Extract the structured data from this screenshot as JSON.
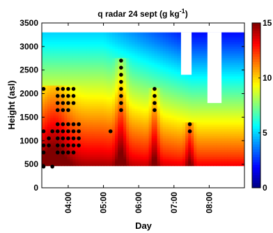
{
  "chart_data": {
    "type": "heatmap",
    "title": "q radar   24 sept    (g kg",
    "title_superscript": "-1",
    "title_suffix": ")",
    "xlabel": "Day",
    "ylabel": "Height (asl)",
    "x_range_hours": [
      3.25,
      9.0
    ],
    "y_range": [
      0,
      3500
    ],
    "x_ticks": [
      {
        "hour": 4,
        "label": "04:00"
      },
      {
        "hour": 5,
        "label": "05:00"
      },
      {
        "hour": 6,
        "label": "06:00"
      },
      {
        "hour": 7,
        "label": "07:00"
      },
      {
        "hour": 8,
        "label": "08:00"
      }
    ],
    "y_ticks": [
      {
        "value": 0,
        "label": "0"
      },
      {
        "value": 500,
        "label": "500"
      },
      {
        "value": 1000,
        "label": "1000"
      },
      {
        "value": 1500,
        "label": "1500"
      },
      {
        "value": 2000,
        "label": "2000"
      },
      {
        "value": 2500,
        "label": "2500"
      },
      {
        "value": 3000,
        "label": "3000"
      },
      {
        "value": 3500,
        "label": "3500"
      }
    ],
    "colorbar": {
      "range": [
        0,
        15
      ],
      "ticks": [
        {
          "value": 0,
          "label": "0"
        },
        {
          "value": 5,
          "label": "5"
        },
        {
          "value": 10,
          "label": "10"
        },
        {
          "value": 15,
          "label": "15"
        }
      ],
      "colormap": "jet"
    },
    "field_extent": {
      "x": [
        3.25,
        9.0
      ],
      "y": [
        470,
        3300
      ]
    },
    "missing_regions": [
      {
        "x": [
          7.2,
          7.5
        ],
        "y": [
          2400,
          3300
        ]
      },
      {
        "x": [
          7.95,
          8.35
        ],
        "y": [
          1800,
          3300
        ]
      }
    ],
    "q_profile": [
      {
        "height": 470,
        "q": 14.5
      },
      {
        "height": 700,
        "q": 13.5
      },
      {
        "height": 1000,
        "q": 12.5
      },
      {
        "height": 1300,
        "q": 11.5
      },
      {
        "height": 1600,
        "q": 10.5
      },
      {
        "height": 1900,
        "q": 9.5
      },
      {
        "height": 2200,
        "q": 8.5
      },
      {
        "height": 2500,
        "q": 7.5
      },
      {
        "height": 2800,
        "q": 6.5
      },
      {
        "height": 3100,
        "q": 5.5
      },
      {
        "height": 3300,
        "q": 5.0
      }
    ],
    "moist_plumes": [
      {
        "x": 5.5,
        "top": 2750,
        "width": 0.16
      },
      {
        "x": 6.45,
        "top": 2150,
        "width": 0.12
      },
      {
        "x": 7.45,
        "top": 1400,
        "width": 0.12
      },
      {
        "x": 3.6,
        "top": 2200,
        "width": 0.45
      }
    ],
    "drying_trend": {
      "start_hour": 5.0,
      "amount": 3.0
    },
    "series": [
      {
        "type": "scatter",
        "points": [
          {
            "x": 3.3,
            "y": 2100
          },
          {
            "x": 3.3,
            "y": 1200
          },
          {
            "x": 3.3,
            "y": 900
          },
          {
            "x": 3.3,
            "y": 750
          },
          {
            "x": 3.3,
            "y": 450
          },
          {
            "x": 3.45,
            "y": 1050
          },
          {
            "x": 3.45,
            "y": 900
          },
          {
            "x": 3.55,
            "y": 1200
          },
          {
            "x": 3.55,
            "y": 450
          },
          {
            "x": 3.7,
            "y": 2100
          },
          {
            "x": 3.7,
            "y": 1950
          },
          {
            "x": 3.7,
            "y": 1800
          },
          {
            "x": 3.7,
            "y": 1650
          },
          {
            "x": 3.7,
            "y": 1350
          },
          {
            "x": 3.7,
            "y": 1200
          },
          {
            "x": 3.7,
            "y": 1050
          },
          {
            "x": 3.7,
            "y": 900
          },
          {
            "x": 3.7,
            "y": 750
          },
          {
            "x": 3.85,
            "y": 2100
          },
          {
            "x": 3.85,
            "y": 1950
          },
          {
            "x": 3.85,
            "y": 1800
          },
          {
            "x": 3.85,
            "y": 1650
          },
          {
            "x": 3.85,
            "y": 1350
          },
          {
            "x": 3.85,
            "y": 1200
          },
          {
            "x": 3.85,
            "y": 1050
          },
          {
            "x": 3.85,
            "y": 900
          },
          {
            "x": 3.85,
            "y": 750
          },
          {
            "x": 4.0,
            "y": 2100
          },
          {
            "x": 4.0,
            "y": 1950
          },
          {
            "x": 4.0,
            "y": 1800
          },
          {
            "x": 4.0,
            "y": 1650
          },
          {
            "x": 4.0,
            "y": 1350
          },
          {
            "x": 4.0,
            "y": 1200
          },
          {
            "x": 4.0,
            "y": 1050
          },
          {
            "x": 4.0,
            "y": 900
          },
          {
            "x": 4.0,
            "y": 750
          },
          {
            "x": 4.15,
            "y": 2100
          },
          {
            "x": 4.15,
            "y": 1950
          },
          {
            "x": 4.15,
            "y": 1800
          },
          {
            "x": 4.15,
            "y": 1350
          },
          {
            "x": 4.15,
            "y": 1200
          },
          {
            "x": 4.15,
            "y": 1050
          },
          {
            "x": 4.15,
            "y": 900
          },
          {
            "x": 4.15,
            "y": 750
          },
          {
            "x": 4.3,
            "y": 1350
          },
          {
            "x": 4.3,
            "y": 1200
          },
          {
            "x": 4.3,
            "y": 1050
          },
          {
            "x": 4.3,
            "y": 900
          },
          {
            "x": 5.2,
            "y": 1200
          },
          {
            "x": 5.5,
            "y": 2700
          },
          {
            "x": 5.5,
            "y": 2550
          },
          {
            "x": 5.5,
            "y": 2400
          },
          {
            "x": 5.5,
            "y": 2250
          },
          {
            "x": 5.5,
            "y": 2100
          },
          {
            "x": 5.5,
            "y": 1950
          },
          {
            "x": 5.5,
            "y": 1800
          },
          {
            "x": 5.5,
            "y": 1650
          },
          {
            "x": 6.45,
            "y": 2100
          },
          {
            "x": 6.45,
            "y": 1950
          },
          {
            "x": 6.45,
            "y": 1800
          },
          {
            "x": 6.45,
            "y": 1650
          },
          {
            "x": 7.45,
            "y": 1350
          },
          {
            "x": 7.45,
            "y": 1200
          }
        ]
      }
    ]
  }
}
